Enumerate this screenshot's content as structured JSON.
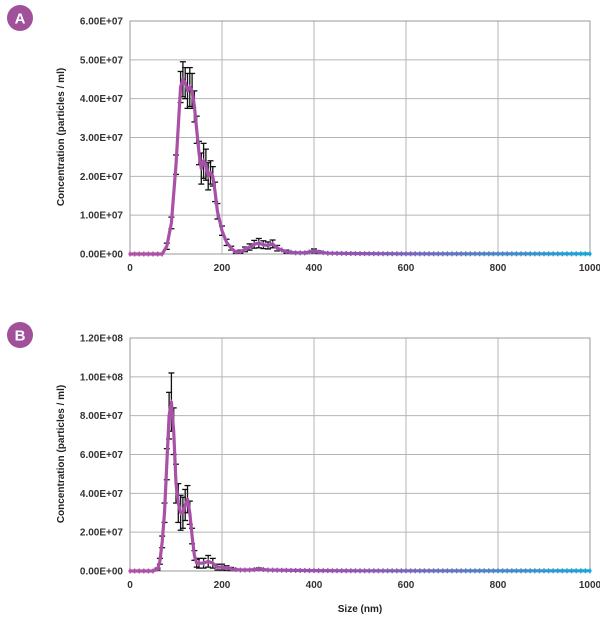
{
  "chart_data": [
    {
      "type": "line",
      "panel_label": "A",
      "xlabel": "",
      "ylabel": "Concentration (particles / ml)",
      "xlim": [
        0,
        1000
      ],
      "ylim": [
        0,
        60000000
      ],
      "x_ticks": [
        "0",
        "200",
        "400",
        "600",
        "800",
        "1000"
      ],
      "y_ticks": [
        "0.00E+00",
        "1.00E+07",
        "2.00E+07",
        "3.00E+07",
        "4.00E+07",
        "5.00E+07",
        "6.00E+07"
      ],
      "grid": true,
      "error_bars": true,
      "series": [
        {
          "x": [
            0,
            60,
            70,
            80,
            90,
            100,
            110,
            115,
            120,
            125,
            130,
            135,
            140,
            145,
            150,
            155,
            160,
            165,
            170,
            175,
            180,
            185,
            190,
            200,
            210,
            220,
            230,
            240,
            250,
            260,
            270,
            280,
            290,
            300,
            310,
            320,
            340,
            360,
            380,
            400,
            410,
            430,
            500,
            600,
            700,
            800,
            900,
            1000
          ],
          "y": [
            0,
            0,
            0,
            2000000,
            8000000,
            23000000,
            43000000,
            45000000,
            44000000,
            42000000,
            43000000,
            42000000,
            38000000,
            32000000,
            26000000,
            22000000,
            24000000,
            23000000,
            20000000,
            21000000,
            20000000,
            16000000,
            11000000,
            6000000,
            3000000,
            1500000,
            500000,
            600000,
            1200000,
            1800000,
            2500000,
            2800000,
            2400000,
            2200000,
            2600000,
            1500000,
            600000,
            300000,
            300000,
            800000,
            500000,
            200000,
            100000,
            50000,
            50000,
            50000,
            50000,
            50000
          ],
          "err": [
            0,
            0,
            0,
            800000,
            1500000,
            2500000,
            4000000,
            4500000,
            4000000,
            4500000,
            5000000,
            4500000,
            4000000,
            3500000,
            3000000,
            4000000,
            4500000,
            4000000,
            3500000,
            3000000,
            2500000,
            2500000,
            2000000,
            1200000,
            800000,
            500000,
            300000,
            400000,
            600000,
            800000,
            1000000,
            1200000,
            1000000,
            900000,
            1000000,
            700000,
            400000,
            200000,
            200000,
            500000,
            300000,
            100000,
            50000,
            0,
            0,
            0,
            0,
            0
          ]
        }
      ]
    },
    {
      "type": "line",
      "panel_label": "B",
      "xlabel": "Size (nm)",
      "ylabel": "Concentration (particles / ml)",
      "xlim": [
        0,
        1000
      ],
      "ylim": [
        0,
        120000000
      ],
      "x_ticks": [
        "0",
        "200",
        "400",
        "600",
        "800",
        "1000"
      ],
      "y_ticks": [
        "0.00E+00",
        "2.00E+07",
        "4.00E+07",
        "6.00E+07",
        "8.00E+07",
        "1.00E+08",
        "1.20E+08"
      ],
      "grid": true,
      "error_bars": true,
      "series": [
        {
          "x": [
            0,
            50,
            60,
            65,
            70,
            75,
            80,
            85,
            90,
            95,
            100,
            105,
            110,
            115,
            120,
            125,
            130,
            135,
            140,
            145,
            150,
            160,
            170,
            180,
            190,
            200,
            210,
            220,
            240,
            260,
            280,
            300,
            350,
            400,
            500,
            600,
            700,
            800,
            900,
            1000
          ],
          "y": [
            0,
            0,
            1000000,
            5000000,
            15000000,
            30000000,
            55000000,
            80000000,
            87000000,
            72000000,
            45000000,
            35000000,
            30000000,
            30000000,
            34000000,
            37000000,
            30000000,
            18000000,
            8000000,
            4000000,
            4000000,
            4000000,
            5000000,
            4000000,
            2000000,
            2000000,
            1500000,
            1000000,
            500000,
            500000,
            1000000,
            500000,
            300000,
            200000,
            100000,
            100000,
            100000,
            100000,
            100000,
            100000
          ],
          "err": [
            0,
            0,
            500000,
            1500000,
            3000000,
            5000000,
            8000000,
            12000000,
            15000000,
            12000000,
            10000000,
            10000000,
            9000000,
            8000000,
            8000000,
            7000000,
            6000000,
            4000000,
            2500000,
            2000000,
            2500000,
            2500000,
            3000000,
            2500000,
            1500000,
            1500000,
            1200000,
            800000,
            400000,
            400000,
            600000,
            300000,
            200000,
            100000,
            50000,
            0,
            0,
            0,
            0,
            0
          ]
        }
      ]
    }
  ],
  "colors": {
    "badge": "#a0519a",
    "series_start": "#b04fa4",
    "series_mid": "#9254b0",
    "series_end": "#1aa6d6",
    "error_bar": "#111111",
    "grid": "#b4b4b4"
  }
}
